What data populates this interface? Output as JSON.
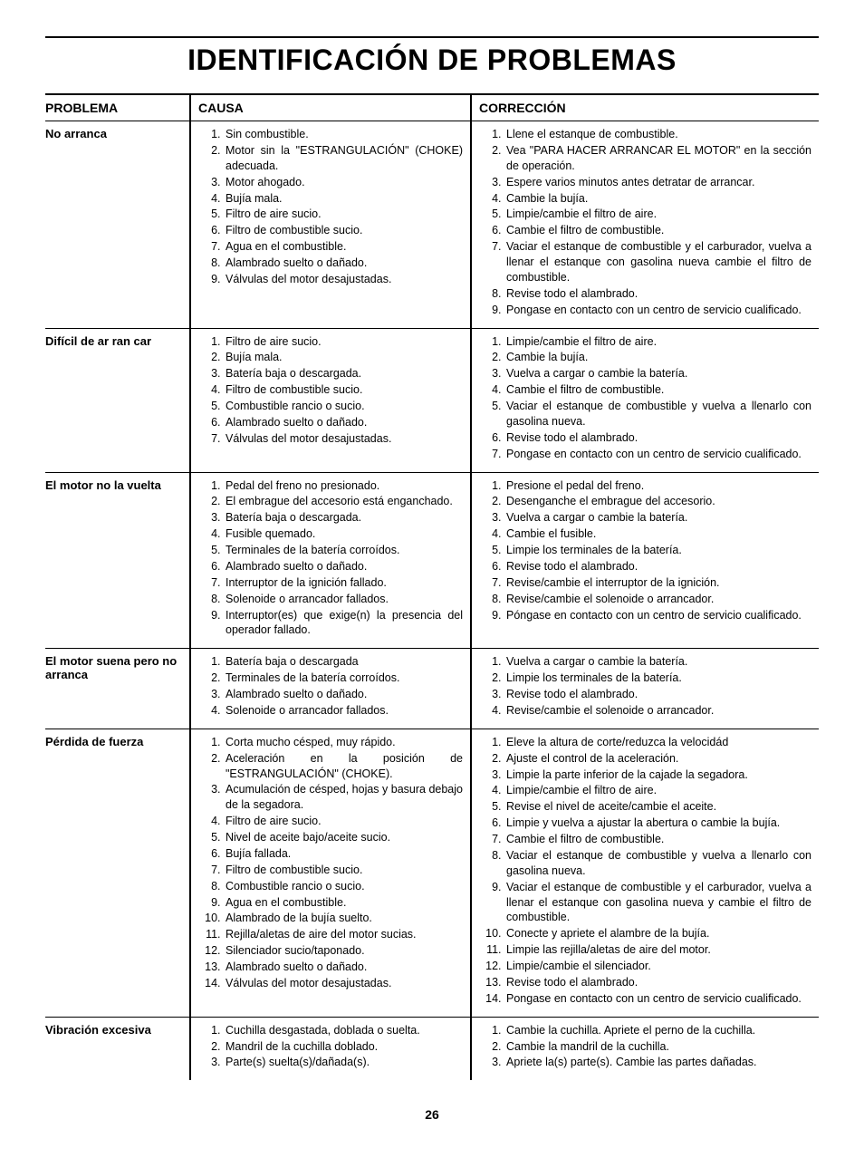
{
  "title": "IDENTIFICACIÓN DE PROBLEMAS",
  "headers": {
    "problem": "PROBLEMA",
    "cause": "CAUSA",
    "correction": "CORRECCIÓN"
  },
  "page_number": "26",
  "rows": [
    {
      "problem": "No arranca",
      "causes": [
        "Sin combustible.",
        "Motor sin la \"ESTRANGULACIÓN\" (CHOKE) adecuada.",
        "Motor ahogado.",
        "Bujía mala.",
        "Filtro de aire sucio.",
        "Filtro de combustible sucio.",
        "Agua en el combustible.",
        "Alambrado suelto o dañado.",
        "Válvulas del motor desajustadas."
      ],
      "fixes": [
        "Llene el estanque de combustible.",
        "Vea \"PARA HACER ARRANCAR EL MOTOR\" en la sección de operación.",
        "Espere varios minutos antes detratar de arrancar.",
        "Cambie la bujía.",
        "Limpie/cambie el filtro de aire.",
        "Cambie el filtro de combustible.",
        "Vaciar el estanque de combustible y el carburador, vuelva a llenar el estanque con gasolina nueva cambie el filtro de combustible.",
        "Revise todo el alambrado.",
        "Pongase en contacto con un centro de servicio cualificado."
      ]
    },
    {
      "problem": "Difícil de ar ran car",
      "causes": [
        "Filtro de aire sucio.",
        "Bujía mala.",
        "Batería baja o descargada.",
        "Filtro de combustible sucio.",
        "Combustible rancio o sucio.",
        "Alambrado suelto o dañado.",
        "Válvulas del motor desajustadas."
      ],
      "fixes": [
        "Limpie/cambie el filtro de aire.",
        "Cambie la bujía.",
        "Vuelva a cargar o cambie la batería.",
        "Cambie el filtro de combustible.",
        "Vaciar el estanque de combustible y vuelva a llenarlo con gasolina nueva.",
        "Revise todo el alambrado.",
        "Pongase en contacto con un centro de servicio cualificado."
      ]
    },
    {
      "problem": "El motor no la vuelta",
      "causes": [
        "Pedal del freno no presionado.",
        "El embrague del accesorio está enganchado.",
        "Batería baja o descargada.",
        "Fusible quemado.",
        "Terminales de la batería corroídos.",
        "Alambrado suelto o dañado.",
        "Interruptor de la ignición fallado.",
        "Solenoide o arrancador fallados.",
        "Interruptor(es) que exige(n) la presencia del operador fallado."
      ],
      "fixes": [
        "Presione el pedal del freno.",
        "Desenganche el embrague del accesorio.",
        "Vuelva a cargar o cambie la batería.",
        "Cambie el fusible.",
        "Limpie los terminales de la batería.",
        "Revise todo el alambrado.",
        "Revise/cambie el interruptor de la ignición.",
        "Revise/cambie el solenoide o arrancador.",
        "Póngase en contacto con un centro de servicio cualificado."
      ]
    },
    {
      "problem": "El motor suena pero no arranca",
      "causes": [
        "Batería baja o descargada",
        "Terminales de la batería corroídos.",
        "Alambrado suelto o dañado.",
        "Solenoide o arrancador fallados."
      ],
      "fixes": [
        "Vuelva a cargar o cambie la batería.",
        "Limpie los terminales de la batería.",
        "Revise todo el alambrado.",
        "Revise/cambie el solenoide o arrancador."
      ]
    },
    {
      "problem": "Pérdida de fuerza",
      "causes": [
        "Corta mucho césped, muy rápido.",
        "Aceleración en la posición de \"ESTRANGULACIÓN\" (CHOKE).",
        "Acumulación de césped, hojas y basura debajo de la segadora.",
        "Filtro de aire sucio.",
        "Nivel de aceite bajo/aceite sucio.",
        "Bujía fallada.",
        "Filtro de combustible sucio.",
        "Combustible rancio o sucio.",
        "Agua en el combustible.",
        "Alambrado de la bujía suelto.",
        "Rejilla/aletas de aire del motor sucias.",
        "Silenciador sucio/taponado.",
        "Alambrado suelto o dañado.",
        "Válvulas del motor desajustadas."
      ],
      "fixes": [
        "Eleve la altura de corte/reduzca la velocidád",
        "Ajuste el control de la aceleración.",
        "Limpie la parte inferior de la cajade la segadora.",
        "Limpie/cambie el filtro de aire.",
        "Revise el nivel de aceite/cambie el aceite.",
        "Limpie y vuelva a ajustar la abertura o cambie la bujía.",
        "Cambie el filtro de combustible.",
        "Vaciar el estanque de combustible y vuelva a llenarlo con gasolina nueva.",
        "Vaciar el estanque de combustible y el carburador, vuelva a llenar el estanque con gasolina nueva y cambie el filtro de combustible.",
        "Conecte y apriete el alambre de la bujía.",
        "Limpie las rejilla/aletas de aire del motor.",
        "Limpie/cambie el silenciador.",
        "Revise todo el alambrado.",
        "Pongase en contacto con un centro de servicio cualificado."
      ]
    },
    {
      "problem": "Vibración excesiva",
      "causes": [
        "Cuchilla desgastada, doblada o suelta.",
        "Mandril de la cuchilla doblado.",
        "Parte(s) suelta(s)/dañada(s)."
      ],
      "fixes": [
        "Cambie la cuchilla. Apriete el perno de la cuchilla.",
        "Cambie la mandril de la cuchilla.",
        "Apriete la(s) parte(s). Cambie las partes dañadas."
      ]
    }
  ]
}
